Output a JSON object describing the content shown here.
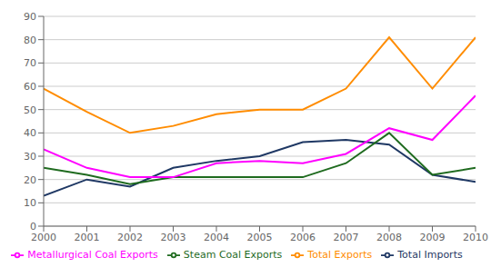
{
  "chart_data": {
    "type": "line",
    "x": [
      2000,
      2001,
      2002,
      2003,
      2004,
      2005,
      2006,
      2007,
      2008,
      2009,
      2010
    ],
    "xlim": [
      2000,
      2010
    ],
    "xticks": [
      2000,
      2001,
      2002,
      2003,
      2004,
      2005,
      2006,
      2007,
      2008,
      2009,
      2010
    ],
    "ylim": [
      0,
      90
    ],
    "yticks": [
      0,
      10,
      20,
      30,
      40,
      50,
      60,
      70,
      80,
      90
    ],
    "grid": true,
    "legend": "bottom",
    "series": [
      {
        "name": "Total Imports",
        "color": "#1F3864",
        "values": [
          13,
          20,
          17,
          25,
          28,
          30,
          36,
          37,
          35,
          22,
          19
        ]
      },
      {
        "name": "Total Exports",
        "color": "#FF8C00",
        "values": [
          59,
          49,
          40,
          43,
          48,
          50,
          50,
          59,
          81,
          59,
          81
        ]
      },
      {
        "name": "Steam Coal Exports",
        "color": "#1F6B1F",
        "values": [
          25,
          22,
          18,
          21,
          21,
          21,
          21,
          27,
          40,
          22,
          25
        ]
      },
      {
        "name": "Metallurgical Coal Exports",
        "color": "#FF00FF",
        "values": [
          33,
          25,
          21,
          21,
          27,
          28,
          27,
          31,
          42,
          37,
          56
        ]
      }
    ]
  }
}
